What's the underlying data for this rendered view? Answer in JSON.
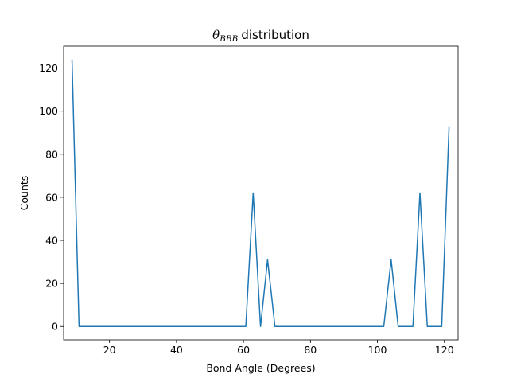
{
  "chart_data": {
    "type": "line",
    "title": {
      "symbol": "θ",
      "subscript": "BBB",
      "text": "distribution"
    },
    "xlabel": "Bond Angle (Degrees)",
    "ylabel": "Counts",
    "xlim": [
      6.3,
      124.1
    ],
    "ylim": [
      -6.2,
      130.2
    ],
    "xticks": [
      20,
      40,
      60,
      80,
      100,
      120
    ],
    "yticks": [
      0,
      20,
      40,
      60,
      80,
      100,
      120
    ],
    "grid": false,
    "color": "#1f77b4",
    "series": [
      {
        "x": [
          8.8,
          10.9,
          13.1,
          15.3,
          17.4,
          19.6,
          21.8,
          23.9,
          26.1,
          28.3,
          30.4,
          32.6,
          34.8,
          36.9,
          39.1,
          41.3,
          43.4,
          45.6,
          47.8,
          49.9,
          52.1,
          54.3,
          56.4,
          58.6,
          60.7,
          62.9,
          65.1,
          67.2,
          69.4,
          71.6,
          73.7,
          75.9,
          78.1,
          80.2,
          82.4,
          84.6,
          86.7,
          88.9,
          91.1,
          93.2,
          95.4,
          97.6,
          99.7,
          101.9,
          104.1,
          106.2,
          108.4,
          110.6,
          112.7,
          114.9,
          117.1,
          119.2,
          121.4
        ],
        "y": [
          124,
          0,
          0,
          0,
          0,
          0,
          0,
          0,
          0,
          0,
          0,
          0,
          0,
          0,
          0,
          0,
          0,
          0,
          0,
          0,
          0,
          0,
          0,
          0,
          0,
          62,
          0,
          31,
          0,
          0,
          0,
          0,
          0,
          0,
          0,
          0,
          0,
          0,
          0,
          0,
          0,
          0,
          0,
          0,
          31,
          0,
          0,
          0,
          62,
          0,
          0,
          0,
          93
        ]
      }
    ]
  }
}
